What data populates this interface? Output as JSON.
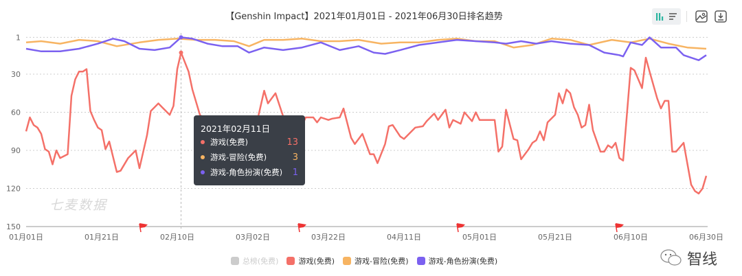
{
  "header": {
    "title": "【Genshin Impact】2021年01月01日 - 2021年06月30日排名趋势",
    "toolbar": {
      "icons": [
        "bar-chart-icon",
        "list-icon",
        "image-export-icon",
        "download-icon"
      ],
      "active_color": "#2bb5a0"
    }
  },
  "watermark": "七麦数据",
  "brand_logo": "智线",
  "tooltip": {
    "date": "2021年02月11日",
    "rows": [
      {
        "label": "游戏(免费)",
        "value": "13",
        "color": "#f47068"
      },
      {
        "label": "游戏-冒险(免费)",
        "value": "3",
        "color": "#f7b462"
      },
      {
        "label": "游戏-角色扮演(免费)",
        "value": "1",
        "color": "#7b61f0"
      }
    ]
  },
  "chart_data": {
    "type": "line",
    "title": "【Genshin Impact】2021年01月01日 - 2021年06月30日排名趋势",
    "y_axis": {
      "inverted": true,
      "range": [
        1,
        150
      ],
      "ticks": [
        "1",
        "30",
        "60",
        "90",
        "120",
        "150"
      ]
    },
    "x_axis": {
      "range": [
        "2021-01-01",
        "2021-06-30"
      ],
      "ticks": [
        "01月01日",
        "01月21日",
        "02月10日",
        "03月02日",
        "03月22日",
        "04月11日",
        "05月01日",
        "05月21日",
        "06月10日",
        "06月30日"
      ]
    },
    "grid": true,
    "legend_position": "bottom",
    "event_flags": [
      "2021-01-31",
      "2021-03-14",
      "2021-04-25",
      "2021-06-06"
    ],
    "crosshair": "2021-02-11",
    "series": [
      {
        "name": "总榜(免费)",
        "color": "#cccccc",
        "hidden": true,
        "points": []
      },
      {
        "name": "游戏(免费)",
        "color": "#f47068",
        "points": [
          [
            "2021-01-01",
            75
          ],
          [
            "2021-01-02",
            64
          ],
          [
            "2021-01-03",
            70
          ],
          [
            "2021-01-04",
            72
          ],
          [
            "2021-01-05",
            77
          ],
          [
            "2021-01-06",
            89
          ],
          [
            "2021-01-07",
            91
          ],
          [
            "2021-01-08",
            101
          ],
          [
            "2021-01-09",
            90
          ],
          [
            "2021-01-10",
            96
          ],
          [
            "2021-01-12",
            93
          ],
          [
            "2021-01-13",
            47
          ],
          [
            "2021-01-14",
            34
          ],
          [
            "2021-01-15",
            28
          ],
          [
            "2021-01-16",
            28
          ],
          [
            "2021-01-17",
            26
          ],
          [
            "2021-01-18",
            59
          ],
          [
            "2021-01-19",
            66
          ],
          [
            "2021-01-20",
            72
          ],
          [
            "2021-01-21",
            74
          ],
          [
            "2021-01-22",
            89
          ],
          [
            "2021-01-23",
            83
          ],
          [
            "2021-01-24",
            95
          ],
          [
            "2021-01-25",
            107
          ],
          [
            "2021-01-26",
            106
          ],
          [
            "2021-01-28",
            96
          ],
          [
            "2021-01-30",
            90
          ],
          [
            "2021-01-31",
            104
          ],
          [
            "2021-02-02",
            78
          ],
          [
            "2021-02-03",
            59
          ],
          [
            "2021-02-05",
            53
          ],
          [
            "2021-02-06",
            56
          ],
          [
            "2021-02-08",
            62
          ],
          [
            "2021-02-09",
            55
          ],
          [
            "2021-02-10",
            26
          ],
          [
            "2021-02-11",
            13
          ],
          [
            "2021-02-13",
            28
          ],
          [
            "2021-02-14",
            42
          ],
          [
            "2021-02-16",
            62
          ],
          [
            "2021-02-17",
            65
          ],
          [
            "2021-02-19",
            66
          ],
          [
            "2021-02-21",
            71
          ],
          [
            "2021-02-23",
            76
          ],
          [
            "2021-02-25",
            85
          ],
          [
            "2021-02-27",
            88
          ],
          [
            "2021-03-02",
            74
          ],
          [
            "2021-03-03",
            69
          ],
          [
            "2021-03-05",
            43
          ],
          [
            "2021-03-06",
            53
          ],
          [
            "2021-03-08",
            45
          ],
          [
            "2021-03-10",
            63
          ],
          [
            "2021-03-11",
            67
          ],
          [
            "2021-03-13",
            76
          ],
          [
            "2021-03-14",
            77
          ],
          [
            "2021-03-16",
            64
          ],
          [
            "2021-03-18",
            64
          ],
          [
            "2021-03-19",
            68
          ],
          [
            "2021-03-20",
            64
          ],
          [
            "2021-03-22",
            66
          ],
          [
            "2021-03-23",
            65
          ],
          [
            "2021-03-25",
            64
          ],
          [
            "2021-03-26",
            57
          ],
          [
            "2021-03-28",
            80
          ],
          [
            "2021-03-29",
            85
          ],
          [
            "2021-03-31",
            77
          ],
          [
            "2021-04-02",
            93
          ],
          [
            "2021-04-03",
            93
          ],
          [
            "2021-04-04",
            100
          ],
          [
            "2021-04-06",
            85
          ],
          [
            "2021-04-07",
            71
          ],
          [
            "2021-04-08",
            70
          ],
          [
            "2021-04-10",
            79
          ],
          [
            "2021-04-11",
            81
          ],
          [
            "2021-04-13",
            75
          ],
          [
            "2021-04-14",
            72
          ],
          [
            "2021-04-16",
            71
          ],
          [
            "2021-04-17",
            67
          ],
          [
            "2021-04-19",
            61
          ],
          [
            "2021-04-20",
            66
          ],
          [
            "2021-04-22",
            58
          ],
          [
            "2021-04-23",
            72
          ],
          [
            "2021-04-24",
            66
          ],
          [
            "2021-04-26",
            69
          ],
          [
            "2021-04-27",
            60
          ],
          [
            "2021-04-29",
            67
          ],
          [
            "2021-04-30",
            60
          ],
          [
            "2021-05-01",
            66
          ],
          [
            "2021-05-05",
            66
          ],
          [
            "2021-05-06",
            91
          ],
          [
            "2021-05-07",
            87
          ],
          [
            "2021-05-08",
            58
          ],
          [
            "2021-05-10",
            81
          ],
          [
            "2021-05-11",
            82
          ],
          [
            "2021-05-12",
            97
          ],
          [
            "2021-05-14",
            89
          ],
          [
            "2021-05-15",
            84
          ],
          [
            "2021-05-16",
            82
          ],
          [
            "2021-05-17",
            75
          ],
          [
            "2021-05-18",
            82
          ],
          [
            "2021-05-19",
            68
          ],
          [
            "2021-05-21",
            62
          ],
          [
            "2021-05-22",
            45
          ],
          [
            "2021-05-23",
            53
          ],
          [
            "2021-05-24",
            42
          ],
          [
            "2021-05-25",
            45
          ],
          [
            "2021-05-26",
            56
          ],
          [
            "2021-05-27",
            62
          ],
          [
            "2021-05-28",
            72
          ],
          [
            "2021-05-29",
            70
          ],
          [
            "2021-05-30",
            54
          ],
          [
            "2021-05-31",
            74
          ],
          [
            "2021-06-02",
            91
          ],
          [
            "2021-06-03",
            91
          ],
          [
            "2021-06-04",
            86
          ],
          [
            "2021-06-05",
            88
          ],
          [
            "2021-06-06",
            84
          ],
          [
            "2021-06-07",
            96
          ],
          [
            "2021-06-08",
            98
          ],
          [
            "2021-06-10",
            25
          ],
          [
            "2021-06-11",
            27
          ],
          [
            "2021-06-13",
            41
          ],
          [
            "2021-06-14",
            17
          ],
          [
            "2021-06-15",
            28
          ],
          [
            "2021-06-17",
            49
          ],
          [
            "2021-06-18",
            57
          ],
          [
            "2021-06-19",
            51
          ],
          [
            "2021-06-20",
            51
          ],
          [
            "2021-06-21",
            91
          ],
          [
            "2021-06-22",
            91
          ],
          [
            "2021-06-24",
            84
          ],
          [
            "2021-06-26",
            117
          ],
          [
            "2021-06-27",
            122
          ],
          [
            "2021-06-28",
            124
          ],
          [
            "2021-06-29",
            120
          ],
          [
            "2021-06-30",
            110
          ]
        ]
      },
      {
        "name": "游戏-冒险(免费)",
        "color": "#f7b462",
        "points": [
          [
            "2021-01-01",
            5
          ],
          [
            "2021-01-05",
            4
          ],
          [
            "2021-01-10",
            6
          ],
          [
            "2021-01-15",
            3
          ],
          [
            "2021-01-20",
            4
          ],
          [
            "2021-01-25",
            8
          ],
          [
            "2021-01-31",
            5
          ],
          [
            "2021-02-05",
            3
          ],
          [
            "2021-02-10",
            2
          ],
          [
            "2021-02-15",
            3
          ],
          [
            "2021-02-20",
            3
          ],
          [
            "2021-02-25",
            4
          ],
          [
            "2021-03-01",
            8
          ],
          [
            "2021-03-05",
            3
          ],
          [
            "2021-03-10",
            3
          ],
          [
            "2021-03-15",
            2
          ],
          [
            "2021-03-20",
            4
          ],
          [
            "2021-03-25",
            4
          ],
          [
            "2021-03-30",
            3
          ],
          [
            "2021-04-05",
            6
          ],
          [
            "2021-04-10",
            5
          ],
          [
            "2021-04-15",
            5
          ],
          [
            "2021-04-20",
            3
          ],
          [
            "2021-04-25",
            2
          ],
          [
            "2021-04-30",
            4
          ],
          [
            "2021-05-05",
            4
          ],
          [
            "2021-05-10",
            9
          ],
          [
            "2021-05-15",
            7
          ],
          [
            "2021-05-20",
            2
          ],
          [
            "2021-05-25",
            3
          ],
          [
            "2021-05-30",
            7
          ],
          [
            "2021-06-05",
            3
          ],
          [
            "2021-06-10",
            5
          ],
          [
            "2021-06-15",
            2
          ],
          [
            "2021-06-20",
            6
          ],
          [
            "2021-06-25",
            9
          ],
          [
            "2021-06-30",
            10
          ]
        ]
      },
      {
        "name": "游戏-角色扮演(免费)",
        "color": "#7b61f0",
        "points": [
          [
            "2021-01-01",
            10
          ],
          [
            "2021-01-05",
            12
          ],
          [
            "2021-01-10",
            12
          ],
          [
            "2021-01-15",
            10
          ],
          [
            "2021-01-20",
            6
          ],
          [
            "2021-01-24",
            2
          ],
          [
            "2021-01-27",
            4
          ],
          [
            "2021-01-31",
            10
          ],
          [
            "2021-02-04",
            11
          ],
          [
            "2021-02-08",
            9
          ],
          [
            "2021-02-11",
            1
          ],
          [
            "2021-02-14",
            2
          ],
          [
            "2021-02-18",
            6
          ],
          [
            "2021-02-22",
            8
          ],
          [
            "2021-02-26",
            8
          ],
          [
            "2021-03-01",
            13
          ],
          [
            "2021-03-05",
            9
          ],
          [
            "2021-03-10",
            11
          ],
          [
            "2021-03-15",
            9
          ],
          [
            "2021-03-20",
            5
          ],
          [
            "2021-03-25",
            11
          ],
          [
            "2021-03-30",
            8
          ],
          [
            "2021-04-03",
            13
          ],
          [
            "2021-04-06",
            14
          ],
          [
            "2021-04-10",
            11
          ],
          [
            "2021-04-15",
            7
          ],
          [
            "2021-04-20",
            5
          ],
          [
            "2021-04-25",
            3
          ],
          [
            "2021-04-30",
            4
          ],
          [
            "2021-05-05",
            5
          ],
          [
            "2021-05-08",
            6
          ],
          [
            "2021-05-12",
            4
          ],
          [
            "2021-05-16",
            6
          ],
          [
            "2021-05-20",
            4
          ],
          [
            "2021-05-25",
            6
          ],
          [
            "2021-05-30",
            7
          ],
          [
            "2021-06-03",
            13
          ],
          [
            "2021-06-07",
            15
          ],
          [
            "2021-06-08",
            16
          ],
          [
            "2021-06-10",
            5
          ],
          [
            "2021-06-13",
            7
          ],
          [
            "2021-06-15",
            1
          ],
          [
            "2021-06-18",
            9
          ],
          [
            "2021-06-22",
            9
          ],
          [
            "2021-06-24",
            15
          ],
          [
            "2021-06-28",
            19
          ],
          [
            "2021-06-30",
            15
          ]
        ]
      }
    ]
  }
}
